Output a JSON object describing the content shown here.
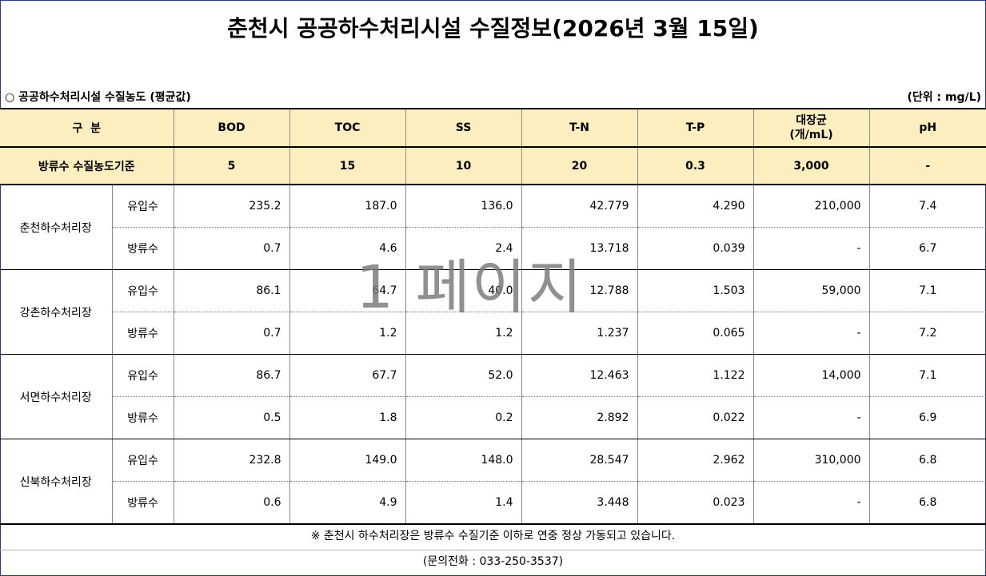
{
  "title": "춘천시 공공하수처리시설 수질정보(2026년 3월 15일)",
  "subtitle": "○ 공공하수처리시설 수질농도 (평균값)",
  "unit": "(단위 : mg/L)",
  "header": {
    "category": "구  분",
    "columns": [
      "BOD",
      "TOC",
      "SS",
      "T-N",
      "T-P",
      "대장균",
      "pH"
    ],
    "coliform_unit": "(개/mL)"
  },
  "standard": {
    "label": "방류수 수질농도기준",
    "values": [
      "5",
      "15",
      "10",
      "20",
      "0.3",
      "3,000",
      "-"
    ]
  },
  "plants": [
    {
      "name": "춘천하수처리장",
      "influent": {
        "label": "유입수",
        "values": [
          "235.2",
          "187.0",
          "136.0",
          "42.779",
          "4.290",
          "210,000",
          "7.4"
        ]
      },
      "effluent": {
        "label": "방류수",
        "values": [
          "0.7",
          "4.6",
          "2.4",
          "13.718",
          "0.039",
          "-",
          "6.7"
        ]
      }
    },
    {
      "name": "강촌하수처리장",
      "influent": {
        "label": "유입수",
        "values": [
          "86.1",
          "64.7",
          "40.0",
          "12.788",
          "1.503",
          "59,000",
          "7.1"
        ]
      },
      "effluent": {
        "label": "방류수",
        "values": [
          "0.7",
          "1.2",
          "1.2",
          "1.237",
          "0.065",
          "-",
          "7.2"
        ]
      }
    },
    {
      "name": "서면하수처리장",
      "influent": {
        "label": "유입수",
        "values": [
          "86.7",
          "67.7",
          "52.0",
          "12.463",
          "1.122",
          "14,000",
          "7.1"
        ]
      },
      "effluent": {
        "label": "방류수",
        "values": [
          "0.5",
          "1.8",
          "0.2",
          "2.892",
          "0.022",
          "-",
          "6.9"
        ]
      }
    },
    {
      "name": "신북하수처리장",
      "influent": {
        "label": "유입수",
        "values": [
          "232.8",
          "149.0",
          "148.0",
          "28.547",
          "2.962",
          "310,000",
          "6.8"
        ]
      },
      "effluent": {
        "label": "방류수",
        "values": [
          "0.6",
          "4.9",
          "1.4",
          "3.448",
          "0.023",
          "-",
          "6.8"
        ]
      }
    }
  ],
  "note": "※ 춘천시 하수처리장은 방류수 수질기준 이하로 연중 정상 가동되고 있습니다.",
  "contact": "(문의전화 : 033-250-3537)",
  "watermark": "1 페이지"
}
